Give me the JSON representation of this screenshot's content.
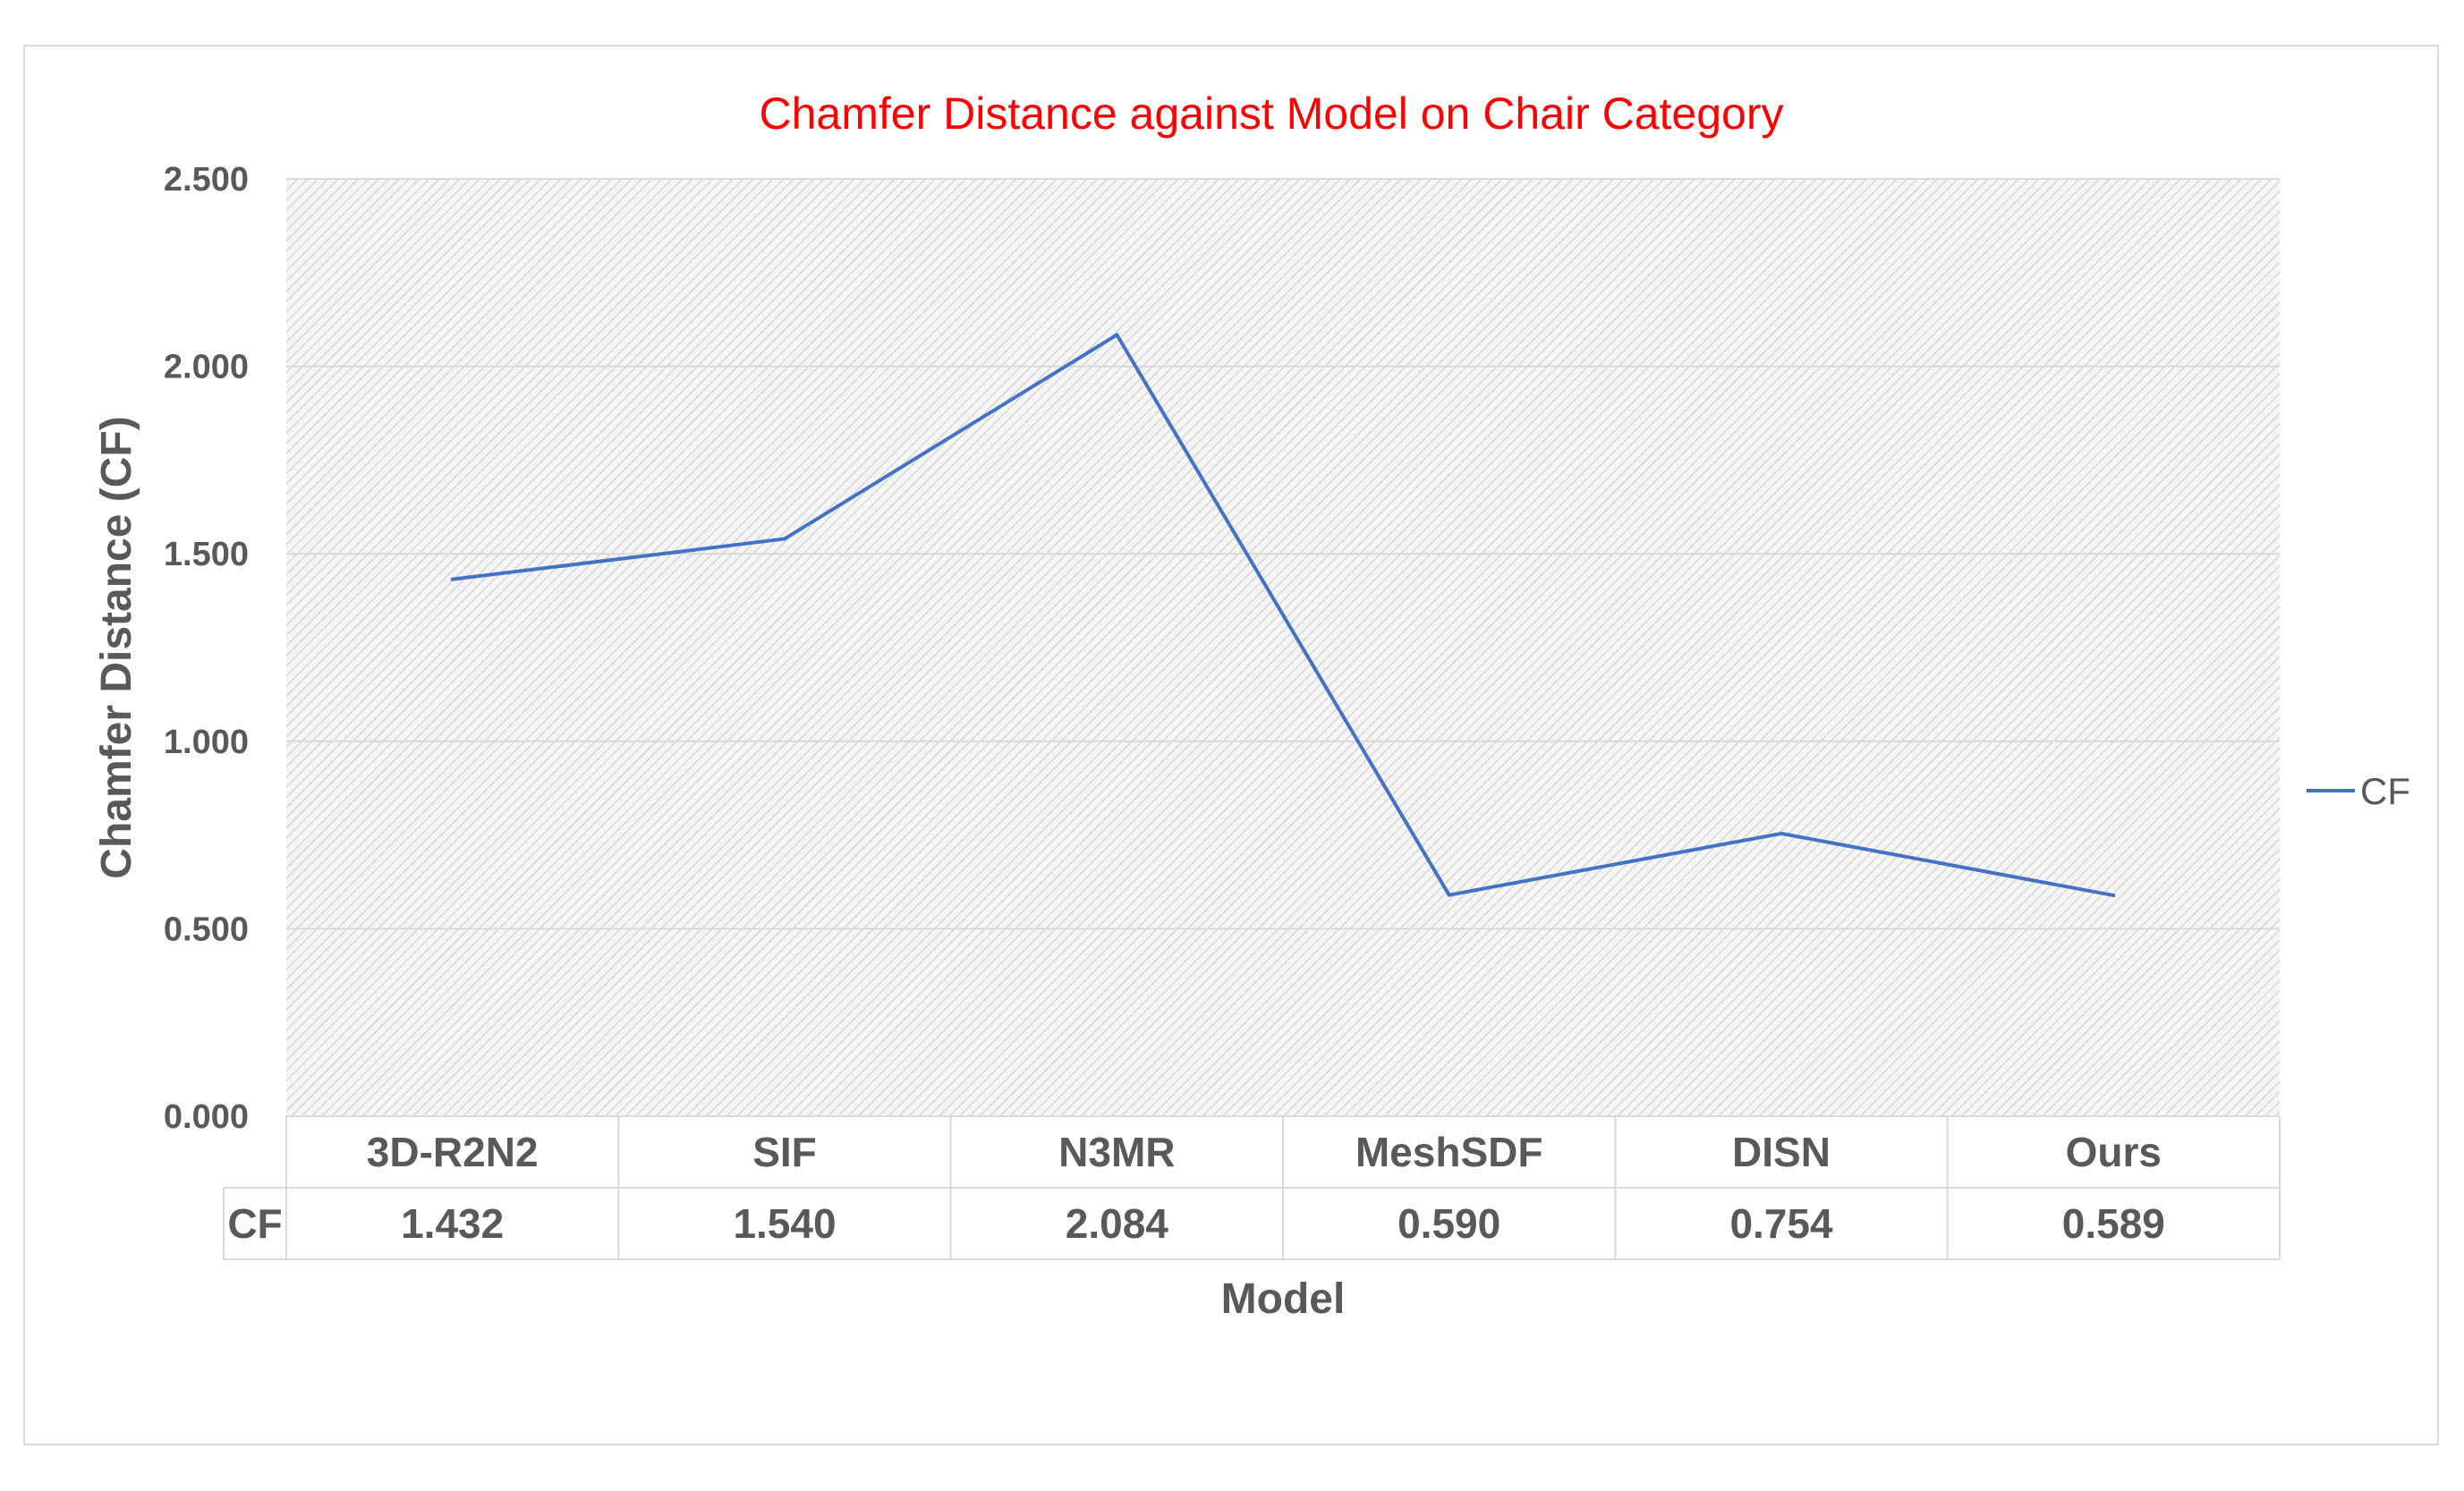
{
  "chart_data": {
    "type": "line",
    "title": "Chamfer Distance against Model on Chair Category",
    "xlabel": "Model",
    "ylabel": "Chamfer Distance (CF)",
    "categories": [
      "3D-R2N2",
      "SIF",
      "N3MR",
      "MeshSDF",
      "DISN",
      "Ours"
    ],
    "series": [
      {
        "name": "CF",
        "values": [
          1.432,
          1.54,
          2.084,
          0.59,
          0.754,
          0.589
        ],
        "value_labels": [
          "1.432",
          "1.540",
          "2.084",
          "0.590",
          "0.754",
          "0.589"
        ]
      }
    ],
    "ylim": [
      0,
      2.5
    ],
    "yticks": [
      0,
      0.5,
      1.0,
      1.5,
      2.0,
      2.5
    ],
    "ytick_labels": [
      "0.000",
      "0.500",
      "1.000",
      "1.500",
      "2.000",
      "2.500"
    ],
    "grid": true,
    "plot_background": "hatched light gray",
    "legend_position": "right",
    "data_table": true,
    "colors": {
      "series": "#4472c4",
      "title": "#ff0000",
      "text": "#595959",
      "grid": "#d9d9d9"
    }
  }
}
